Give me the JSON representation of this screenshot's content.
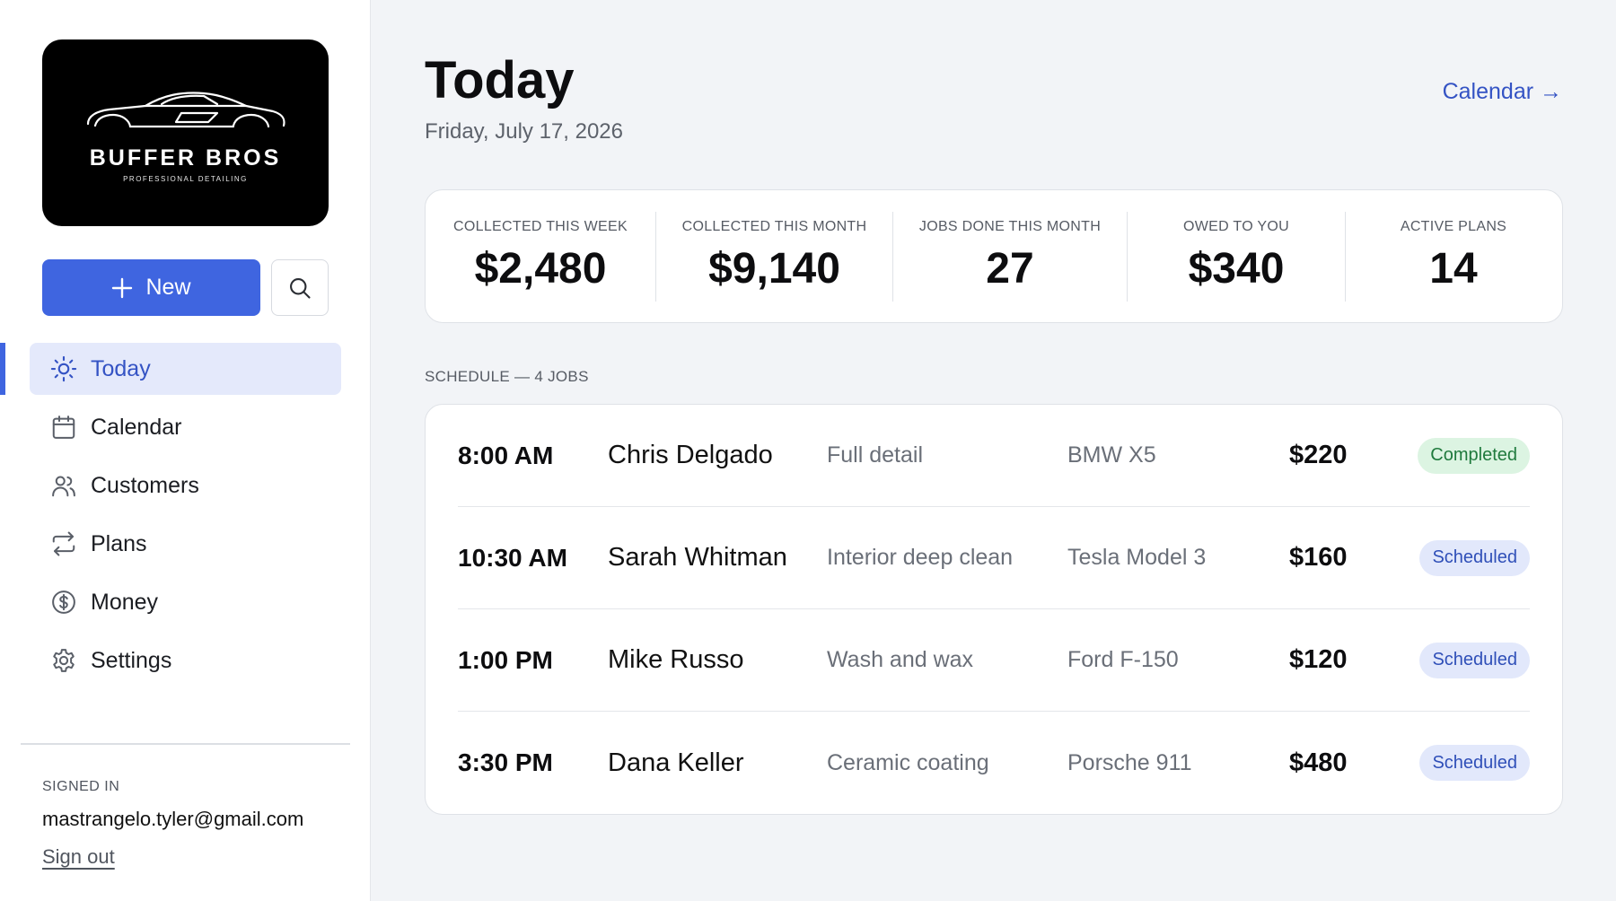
{
  "brand": {
    "name": "BUFFER BROS",
    "tagline": "PROFESSIONAL DETAILING"
  },
  "actions": {
    "new_label": "New",
    "search_icon": "search-icon",
    "accent_color": "#3f65e0"
  },
  "nav": {
    "items": [
      {
        "label": "Today",
        "icon": "sun-icon",
        "active": true
      },
      {
        "label": "Calendar",
        "icon": "calendar-icon",
        "active": false
      },
      {
        "label": "Customers",
        "icon": "users-icon",
        "active": false
      },
      {
        "label": "Plans",
        "icon": "repeat-icon",
        "active": false
      },
      {
        "label": "Money",
        "icon": "dollar-icon",
        "active": false
      },
      {
        "label": "Settings",
        "icon": "gear-icon",
        "active": false
      }
    ]
  },
  "account": {
    "signed_in_label": "SIGNED IN",
    "email": "mastrangelo.tyler@gmail.com",
    "sign_out_label": "Sign out"
  },
  "header": {
    "title": "Today",
    "date": "Friday, July 17, 2026",
    "calendar_link": "Calendar →"
  },
  "stats": [
    {
      "label": "COLLECTED THIS WEEK",
      "value": "$2,480"
    },
    {
      "label": "COLLECTED THIS MONTH",
      "value": "$9,140"
    },
    {
      "label": "JOBS DONE THIS MONTH",
      "value": "27"
    },
    {
      "label": "OWED TO YOU",
      "value": "$340"
    },
    {
      "label": "ACTIVE PLANS",
      "value": "14"
    }
  ],
  "schedule": {
    "heading": "SCHEDULE — 4 JOBS",
    "jobs": [
      {
        "time": "8:00 AM",
        "customer": "Chris Delgado",
        "service": "Full detail",
        "vehicle": "BMW X5",
        "amount": "$220",
        "status": "Completed"
      },
      {
        "time": "10:30 AM",
        "customer": "Sarah Whitman",
        "service": "Interior deep clean",
        "vehicle": "Tesla Model 3",
        "amount": "$160",
        "status": "Scheduled"
      },
      {
        "time": "1:00 PM",
        "customer": "Mike Russo",
        "service": "Wash and wax",
        "vehicle": "Ford F-150",
        "amount": "$120",
        "status": "Scheduled"
      },
      {
        "time": "3:30 PM",
        "customer": "Dana Keller",
        "service": "Ceramic coating",
        "vehicle": "Porsche 911",
        "amount": "$480",
        "status": "Scheduled"
      }
    ],
    "status_colors": {
      "Completed": "#1f7a3d",
      "Scheduled": "#2f4fb8"
    }
  }
}
